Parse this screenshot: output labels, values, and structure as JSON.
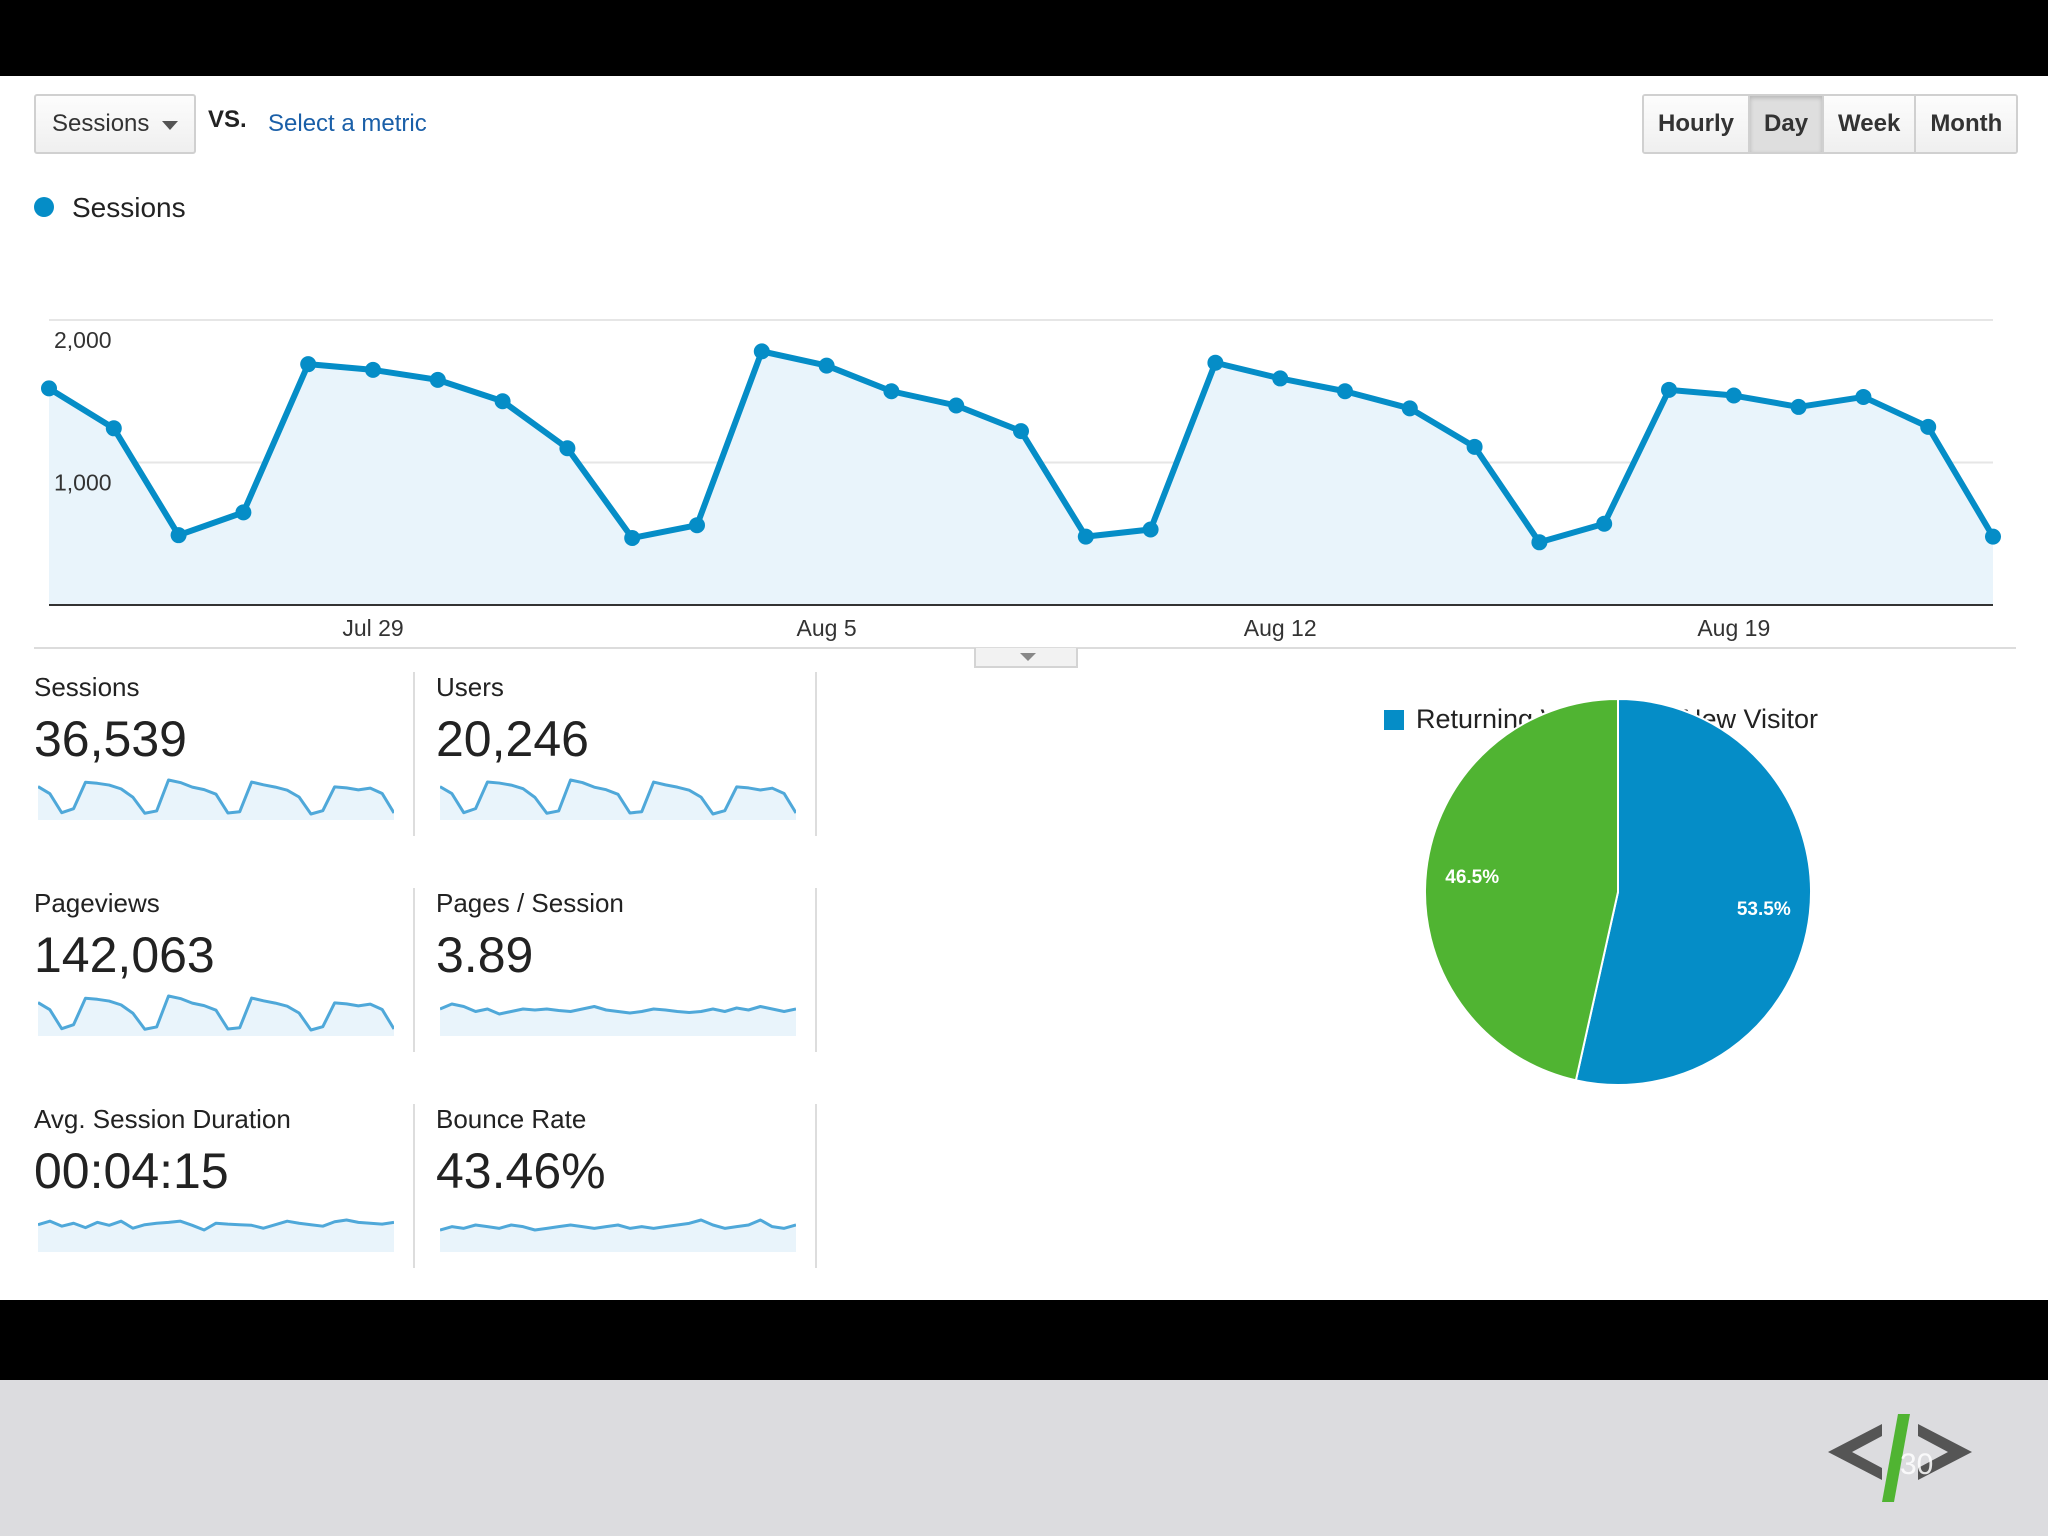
{
  "toolbar": {
    "metric_select": "Sessions",
    "vs_label": "VS.",
    "select_metric_link": "Select a metric",
    "granularity": [
      "Hourly",
      "Day",
      "Week",
      "Month"
    ],
    "active_granularity": "Day"
  },
  "chart_data": [
    {
      "type": "area",
      "legend": "Sessions",
      "y_ticks": [
        "2,000",
        "1,000"
      ],
      "x_ticks": [
        "Jul 29",
        "Aug 5",
        "Aug 12",
        "Aug 19"
      ],
      "x_tick_index": [
        5,
        12,
        19,
        26
      ],
      "ylim": [
        0,
        2000
      ],
      "grid": true,
      "color": "#058dc7",
      "values": [
        1520,
        1240,
        490,
        650,
        1690,
        1650,
        1580,
        1430,
        1100,
        470,
        560,
        1780,
        1680,
        1500,
        1400,
        1220,
        480,
        530,
        1700,
        1590,
        1500,
        1380,
        1110,
        440,
        570,
        1510,
        1470,
        1390,
        1460,
        1250,
        480
      ]
    },
    {
      "type": "pie",
      "legend": [
        "Returning Visitor",
        "New Visitor"
      ],
      "slices": [
        {
          "name": "Returning Visitor",
          "value": 53.5,
          "label": "53.5%",
          "color": "#058dc7"
        },
        {
          "name": "New Visitor",
          "value": 46.5,
          "label": "46.5%",
          "color": "#50b432"
        }
      ]
    }
  ],
  "tiles": [
    {
      "label": "Sessions",
      "value": "36,539",
      "spark": [
        1520,
        1240,
        490,
        650,
        1690,
        1650,
        1580,
        1430,
        1100,
        470,
        560,
        1780,
        1680,
        1500,
        1400,
        1220,
        480,
        530,
        1700,
        1590,
        1500,
        1380,
        1110,
        440,
        570,
        1510,
        1470,
        1390,
        1460,
        1250,
        480
      ]
    },
    {
      "label": "Users",
      "value": "20,246",
      "spark": [
        1500,
        1230,
        480,
        640,
        1680,
        1640,
        1560,
        1420,
        1080,
        460,
        550,
        1760,
        1660,
        1480,
        1380,
        1200,
        470,
        520,
        1680,
        1570,
        1480,
        1360,
        1090,
        430,
        560,
        1490,
        1450,
        1370,
        1440,
        1230,
        470
      ]
    },
    {
      "label": "Pageviews",
      "value": "142,063",
      "spark": [
        1520,
        1240,
        490,
        650,
        1690,
        1650,
        1580,
        1430,
        1100,
        470,
        560,
        1780,
        1680,
        1500,
        1400,
        1220,
        480,
        530,
        1700,
        1590,
        1500,
        1380,
        1110,
        440,
        570,
        1510,
        1470,
        1390,
        1460,
        1250,
        480
      ]
    },
    {
      "label": "Pages / Session",
      "value": "3.89",
      "spark": [
        3.9,
        4.0,
        3.95,
        3.85,
        3.9,
        3.8,
        3.85,
        3.9,
        3.88,
        3.9,
        3.87,
        3.85,
        3.9,
        3.95,
        3.88,
        3.85,
        3.82,
        3.85,
        3.9,
        3.88,
        3.85,
        3.83,
        3.85,
        3.9,
        3.85,
        3.92,
        3.88,
        3.95,
        3.9,
        3.85,
        3.9
      ]
    },
    {
      "label": "Avg. Session Duration",
      "value": "00:04:15",
      "spark": [
        250,
        262,
        245,
        255,
        240,
        258,
        248,
        262,
        238,
        250,
        255,
        258,
        262,
        248,
        232,
        255,
        252,
        250,
        248,
        238,
        250,
        262,
        255,
        250,
        245,
        260,
        266,
        258,
        255,
        252,
        258
      ]
    },
    {
      "label": "Bounce Rate",
      "value": "43.46%",
      "spark": [
        43.3,
        43.5,
        43.4,
        43.6,
        43.5,
        43.4,
        43.6,
        43.5,
        43.3,
        43.4,
        43.5,
        43.6,
        43.5,
        43.4,
        43.5,
        43.6,
        43.4,
        43.5,
        43.4,
        43.5,
        43.6,
        43.7,
        43.9,
        43.6,
        43.4,
        43.5,
        43.6,
        43.9,
        43.5,
        43.4,
        43.6
      ]
    }
  ],
  "footer": {
    "slide_number": "30",
    "logo_icon": "code-brackets-logo-icon"
  }
}
